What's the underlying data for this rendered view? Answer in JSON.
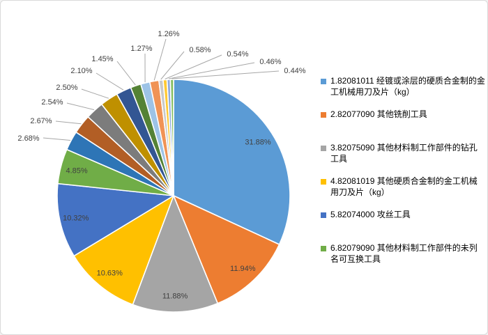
{
  "canvas": {
    "background": "#FFFFFF",
    "border_color": "#D9D9D9"
  },
  "chart_data": {
    "type": "pie",
    "title": "",
    "value_format": "percent",
    "legend_position": "right",
    "slices": [
      {
        "label": "31.88%",
        "value": 31.88,
        "color": "#5B9BD5"
      },
      {
        "label": "11.94%",
        "value": 11.94,
        "color": "#ED7D31"
      },
      {
        "label": "11.88%",
        "value": 11.88,
        "color": "#A5A5A5"
      },
      {
        "label": "10.63%",
        "value": 10.63,
        "color": "#FFC000"
      },
      {
        "label": "10.32%",
        "value": 10.32,
        "color": "#4472C4"
      },
      {
        "label": "4.85%",
        "value": 4.85,
        "color": "#70AD47"
      },
      {
        "label": "2.68%",
        "value": 2.68,
        "color": "#2E75B6"
      },
      {
        "label": "2.67%",
        "value": 2.67,
        "color": "#B25E25"
      },
      {
        "label": "2.54%",
        "value": 2.54,
        "color": "#7C7C7C"
      },
      {
        "label": "2.50%",
        "value": 2.5,
        "color": "#BF9000"
      },
      {
        "label": "2.10%",
        "value": 2.1,
        "color": "#335693"
      },
      {
        "label": "1.45%",
        "value": 1.45,
        "color": "#548235"
      },
      {
        "label": "1.27%",
        "value": 1.27,
        "color": "#9DC3E6"
      },
      {
        "label": "1.26%",
        "value": 1.26,
        "color": "#F09355"
      },
      {
        "label": "0.58%",
        "value": 0.58,
        "color": "#C9C9C9"
      },
      {
        "label": "0.54%",
        "value": 0.54,
        "color": "#FFC933"
      },
      {
        "label": "0.46%",
        "value": 0.46,
        "color": "#8FAADC"
      },
      {
        "label": "0.44%",
        "value": 0.44,
        "color": "#85BD5F"
      }
    ],
    "legend": [
      {
        "label": "1.82081011 经镀或涂层的硬质合金制的金工机械用刀及片（kg）",
        "color": "#5B9BD5"
      },
      {
        "label": "2.82077090 其他铣削工具",
        "color": "#ED7D31"
      },
      {
        "label": "3.82075090 其他材料制工作部件的钻孔工具",
        "color": "#A5A5A5"
      },
      {
        "label": "4.82081019 其他硬质合金制的金工机械用刀及片（kg）",
        "color": "#FFC000"
      },
      {
        "label": "5.82074000 攻丝工具",
        "color": "#4472C4"
      },
      {
        "label": "6.82079090 其他材料制工作部件的未列名可互换工具",
        "color": "#70AD47"
      }
    ],
    "leader_line_color": "#A6A6A6",
    "label_color": "#404040"
  }
}
